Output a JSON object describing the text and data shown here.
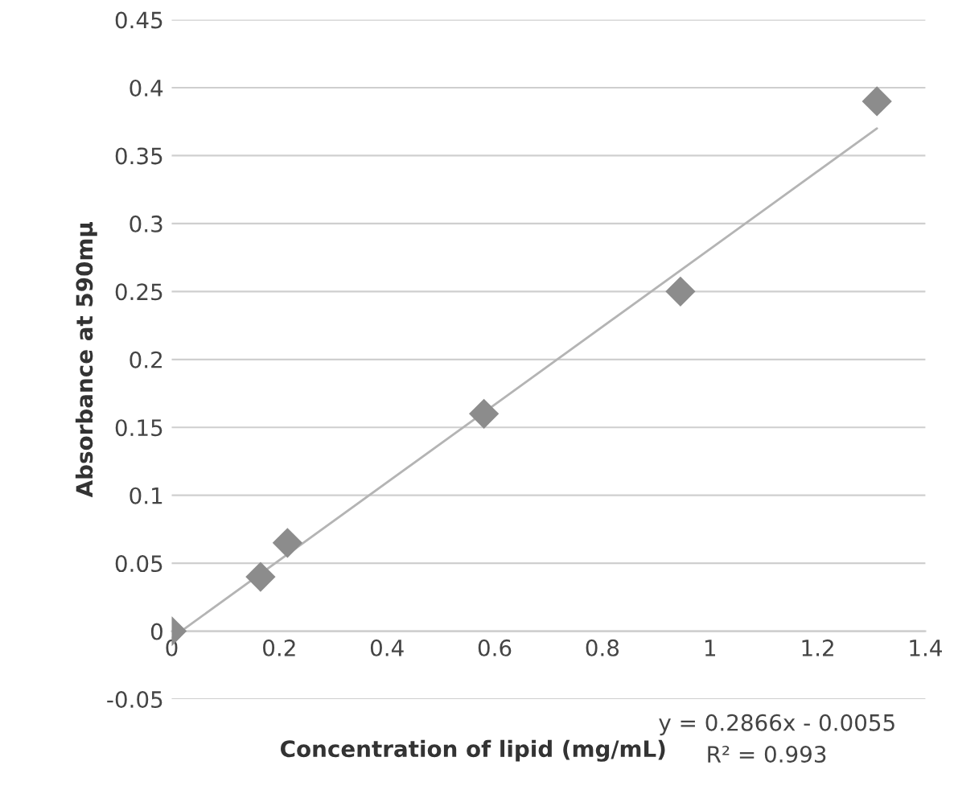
{
  "chart_data": {
    "type": "scatter",
    "xlabel": "Concentration of lipid (mg/mL)",
    "ylabel": "Absorbance at 590mμ",
    "series": [
      {
        "color": "#8c8c8c",
        "x": [
          0,
          0.165,
          0.215,
          0.58,
          0.945,
          1.31
        ],
        "values": [
          0,
          0.04,
          0.065,
          0.16,
          0.25,
          0.39
        ],
        "marker": "diamond"
      },
      {
        "type": "line",
        "color": "#b4b4b4",
        "x": [
          0,
          1.31
        ],
        "values": [
          -0.005,
          0.37
        ],
        "line_style": "solid",
        "marker": "none"
      }
    ],
    "annotations": [
      "y = 0.2866x - 0.0055",
      "R² = 0.993"
    ],
    "xlim": [
      0,
      1.4
    ],
    "xticks": [
      0,
      0.2,
      0.4,
      0.6,
      0.8,
      1,
      1.2,
      1.4
    ],
    "ylim": [
      -0.05,
      0.45
    ],
    "yticks": [
      -0.05,
      0,
      0.05,
      0.1,
      0.15,
      0.2,
      0.25,
      0.3,
      0.35,
      0.4,
      0.45
    ],
    "grid": "y",
    "legend": false
  }
}
